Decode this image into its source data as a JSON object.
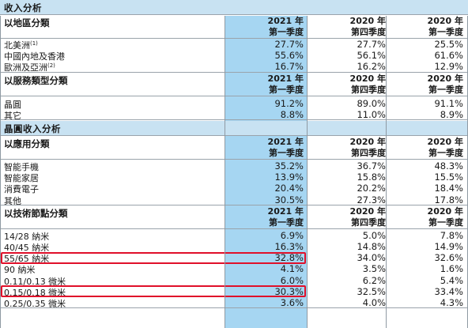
{
  "title": "收入分析",
  "period_headers": [
    [
      "2021 年",
      "第一季度"
    ],
    [
      "2020 年",
      "第四季度"
    ],
    [
      "2020 年",
      "第一季度"
    ]
  ],
  "region": {
    "heading": "以地區分類",
    "rows": [
      {
        "label": "北美洲",
        "note": "(1)",
        "values": [
          "27.7%",
          "27.7%",
          "25.5%"
        ]
      },
      {
        "label": "中國內地及香港",
        "note": "",
        "values": [
          "55.6%",
          "56.1%",
          "61.6%"
        ]
      },
      {
        "label": "歐洲及亞洲",
        "note": "(2)",
        "values": [
          "16.7%",
          "16.2%",
          "12.9%"
        ]
      }
    ]
  },
  "service": {
    "heading": "以服務類型分類",
    "rows": [
      {
        "label": "晶圓",
        "values": [
          "91.2%",
          "89.0%",
          "91.1%"
        ]
      },
      {
        "label": "其它",
        "values": [
          "8.8%",
          "11.0%",
          "8.9%"
        ]
      }
    ]
  },
  "wafer_title": "晶圓收入分析",
  "application": {
    "heading": "以應用分類",
    "rows": [
      {
        "label": "智能手機",
        "values": [
          "35.2%",
          "36.7%",
          "48.3%"
        ]
      },
      {
        "label": "智能家居",
        "values": [
          "13.9%",
          "15.8%",
          "15.5%"
        ]
      },
      {
        "label": "消費電子",
        "values": [
          "20.4%",
          "20.2%",
          "18.4%"
        ]
      },
      {
        "label": "其他",
        "values": [
          "30.5%",
          "27.3%",
          "17.8%"
        ]
      }
    ]
  },
  "technology": {
    "heading": "以技術節點分類",
    "rows": [
      {
        "label": "14/28 納米",
        "values": [
          "6.9%",
          "5.0%",
          "7.8%"
        ]
      },
      {
        "label": "40/45 納米",
        "values": [
          "16.3%",
          "14.8%",
          "14.9%"
        ]
      },
      {
        "label": "55/65 納米",
        "values": [
          "32.8%",
          "34.0%",
          "32.6%"
        ],
        "highlight": true
      },
      {
        "label": "90 納米",
        "values": [
          "4.1%",
          "3.5%",
          "1.6%"
        ]
      },
      {
        "label": "0.11/0.13 微米",
        "values": [
          "6.0%",
          "6.2%",
          "5.4%"
        ]
      },
      {
        "label": "0.15/0.18 微米",
        "values": [
          "30.3%",
          "32.5%",
          "33.4%"
        ],
        "highlight": true
      },
      {
        "label": "0.25/0.35 微米",
        "values": [
          "3.6%",
          "4.0%",
          "4.3%"
        ]
      }
    ]
  },
  "colors": {
    "highlight_column": "#a6d6f2",
    "section_band": "#c8e2f2",
    "box_outline": "#e0102a"
  }
}
